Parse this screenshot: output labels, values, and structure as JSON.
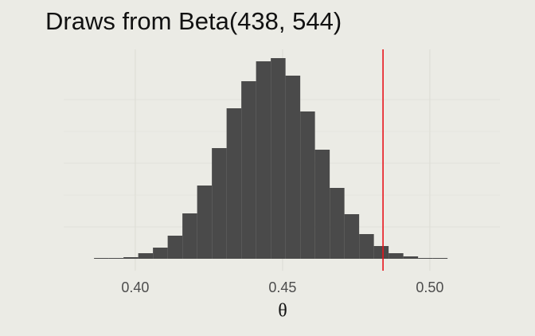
{
  "chart_data": {
    "type": "histogram",
    "title": "Draws from Beta(438, 544)",
    "xlabel": "θ",
    "bins": [
      0.386,
      0.391,
      0.396,
      0.401,
      0.406,
      0.411,
      0.416,
      0.421,
      0.426,
      0.431,
      0.436,
      0.441,
      0.446,
      0.451,
      0.456,
      0.461,
      0.466,
      0.471,
      0.476,
      0.481,
      0.486,
      0.491,
      0.496,
      0.501,
      0.506
    ],
    "values": [
      1,
      1,
      2,
      7,
      14,
      29,
      57,
      92,
      139,
      189,
      223,
      248,
      252,
      230,
      185,
      137,
      89,
      56,
      31,
      16,
      7,
      3,
      1,
      1
    ],
    "color": "#4a4a4a",
    "vline": 0.4841,
    "vline_color": "#e8141c",
    "xlim": [
      0.3757,
      0.5238
    ],
    "ylim": [
      -15,
      263
    ],
    "xticks": [
      {
        "value": 0.4,
        "label": "0.40"
      },
      {
        "value": 0.45,
        "label": "0.45"
      },
      {
        "value": 0.5,
        "label": "0.50"
      }
    ],
    "grid": true
  }
}
